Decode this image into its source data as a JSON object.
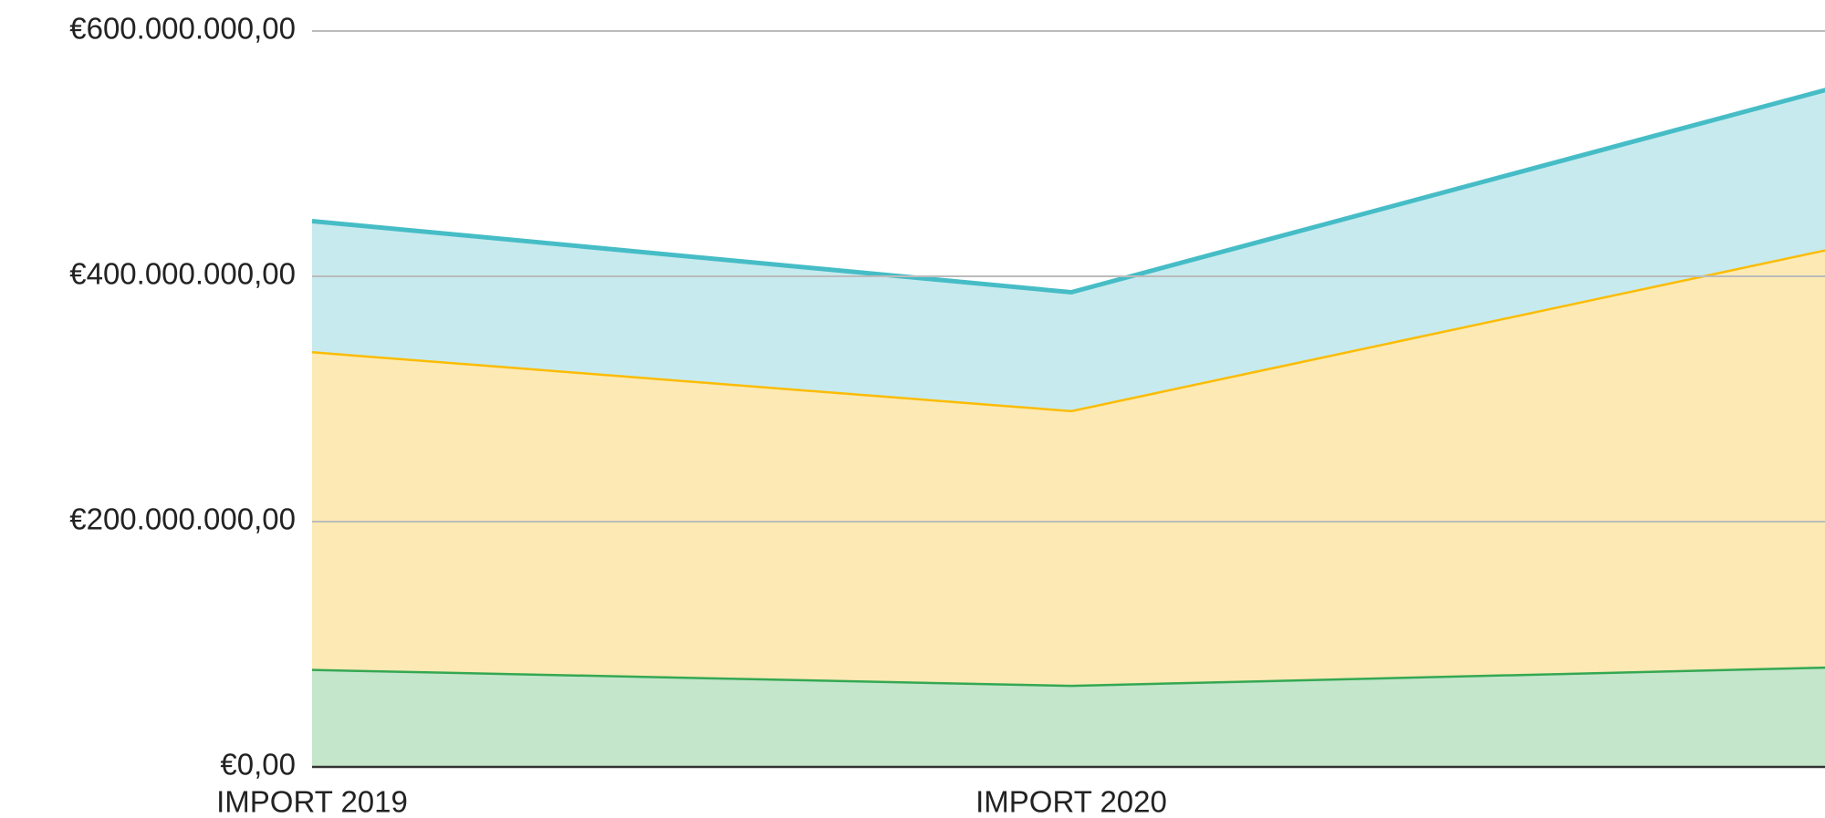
{
  "chart_data": {
    "type": "stacked_area",
    "categories": [
      "IMPORT 2019",
      "IMPORT 2020",
      null
    ],
    "series": [
      {
        "color": "#34a853",
        "fill": "#c4e6cb",
        "values": [
          80000000,
          67000000,
          82000000
        ]
      },
      {
        "color": "#fbbc04",
        "fill": "#fde9b4",
        "values": [
          259000000,
          224000000,
          341000000
        ]
      },
      {
        "color": "#46bdc6",
        "fill": "#c7eaee",
        "values": [
          106000000,
          96000000,
          130000000
        ]
      }
    ],
    "ylim": [
      0,
      600000000
    ],
    "yticks": [
      {
        "value": 0,
        "label": "€0,00"
      },
      {
        "value": 200000000,
        "label": "€200.000.000,00"
      },
      {
        "value": 400000000,
        "label": "€400.000.000,00"
      },
      {
        "value": 600000000,
        "label": "€600.000.000,00"
      }
    ],
    "grid": true
  }
}
